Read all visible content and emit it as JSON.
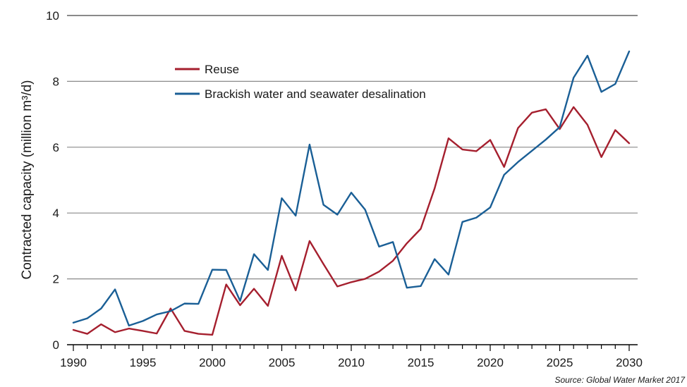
{
  "chart_data": {
    "type": "line",
    "title": "",
    "xlabel": "",
    "ylabel": "Contracted capacity (million m³/d)",
    "xlim": [
      1990,
      2030
    ],
    "ylim": [
      0,
      10
    ],
    "yticks": [
      0,
      2,
      4,
      6,
      8,
      10
    ],
    "xticks": [
      1990,
      1995,
      2000,
      2005,
      2010,
      2015,
      2020,
      2025,
      2030
    ],
    "grid": true,
    "legend_position": "top-left",
    "source": "Source: Global Water Market 2017",
    "x": [
      1990,
      1991,
      1992,
      1993,
      1994,
      1995,
      1996,
      1997,
      1998,
      1999,
      2000,
      2001,
      2002,
      2003,
      2004,
      2005,
      2006,
      2007,
      2008,
      2009,
      2010,
      2011,
      2012,
      2013,
      2014,
      2015,
      2016,
      2017,
      2018,
      2019,
      2020,
      2021,
      2022,
      2023,
      2024,
      2025,
      2026,
      2027,
      2028,
      2029,
      2030
    ],
    "series": [
      {
        "name": "Reuse",
        "color": "#a51f2e",
        "values": [
          0.45,
          0.33,
          0.62,
          0.38,
          0.49,
          0.42,
          0.34,
          1.1,
          0.42,
          0.33,
          0.3,
          1.83,
          1.2,
          1.7,
          1.18,
          2.7,
          1.65,
          3.15,
          2.45,
          1.77,
          1.9,
          2.0,
          2.22,
          2.55,
          3.08,
          3.52,
          4.75,
          6.27,
          5.93,
          5.88,
          6.22,
          5.4,
          6.58,
          7.05,
          7.15,
          6.55,
          7.22,
          6.68,
          5.7,
          6.52,
          6.12
        ]
      },
      {
        "name": "Brackish water and seawater desalination",
        "color": "#1a5f96",
        "values": [
          0.67,
          0.8,
          1.1,
          1.68,
          0.58,
          0.72,
          0.92,
          1.02,
          1.25,
          1.24,
          2.28,
          2.27,
          1.33,
          2.75,
          2.27,
          4.45,
          3.92,
          6.08,
          4.25,
          3.95,
          4.62,
          4.1,
          2.98,
          3.12,
          1.73,
          1.78,
          2.6,
          2.13,
          3.73,
          3.86,
          4.17,
          5.16,
          5.55,
          5.89,
          6.23,
          6.61,
          8.11,
          8.78,
          7.68,
          7.92,
          8.91
        ]
      }
    ]
  }
}
